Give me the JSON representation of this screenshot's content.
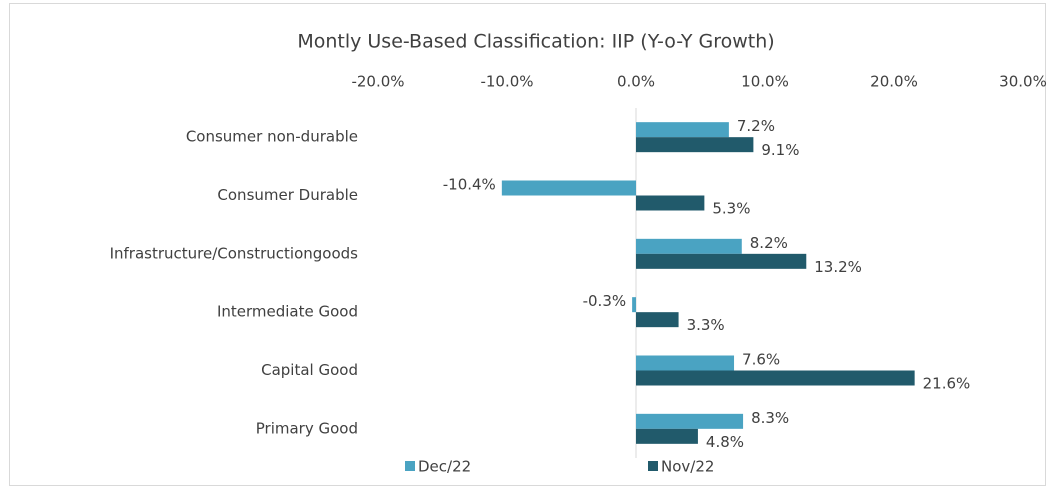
{
  "chart_data": {
    "type": "barh",
    "title": "Montly Use-Based Classification: IIP (Y-o-Y Growth)",
    "categories": [
      "Consumer non-durable",
      "Consumer Durable",
      "Infrastructure/Constructiongoods",
      "Intermediate Good",
      "Capital Good",
      "Primary Good"
    ],
    "series": [
      {
        "name": "Dec/22",
        "color": "#4aa3c2",
        "values": [
          7.2,
          -10.4,
          8.2,
          -0.3,
          7.6,
          8.3
        ],
        "value_labels": [
          "7.2%",
          "-10.4%",
          "8.2%",
          "-0.3%",
          "7.6%",
          "8.3%"
        ]
      },
      {
        "name": "Nov/22",
        "color": "#215a6b",
        "values": [
          9.1,
          5.3,
          13.2,
          3.3,
          21.6,
          4.8
        ],
        "value_labels": [
          "9.1%",
          "5.3%",
          "13.2%",
          "3.3%",
          "21.6%",
          "4.8%"
        ]
      }
    ],
    "xlim": [
      -20,
      30
    ],
    "xticks": [
      {
        "value": -20,
        "label": "-20.0%"
      },
      {
        "value": -10,
        "label": "-10.0%"
      },
      {
        "value": 0,
        "label": "0.0%"
      },
      {
        "value": 10,
        "label": "10.0%"
      },
      {
        "value": 20,
        "label": "20.0%"
      },
      {
        "value": 30,
        "label": "30.0%"
      }
    ],
    "legend": "bottom"
  }
}
